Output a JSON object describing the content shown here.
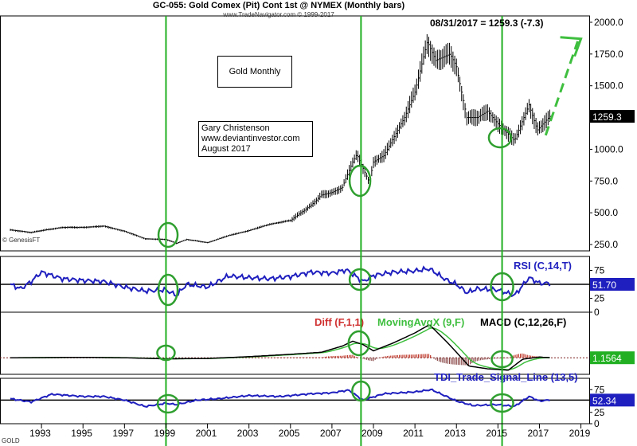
{
  "header": {
    "title": "GC-055:  Gold Comex (Pit) Cont 1st @ NYMEX  (Monthly bars)",
    "source": "www.TradeNavigator.com © 1999-2017",
    "last_quote": "08/31/2017 = 1259.3 (-7.3)"
  },
  "annotations": {
    "gold_monthly": "Gold Monthly",
    "author_lines": [
      "Gary Christenson",
      "www.deviantinvestor.com",
      "August 2017"
    ],
    "genesis": "© GenesisFT",
    "symbol": "GOLD"
  },
  "colors": {
    "price": "#000000",
    "indicator": "#1f1fbf",
    "diff_pos": "#c0392b",
    "moving_avg": "#3fbf3f",
    "vline": "#22b022",
    "circle": "#2f9f2f",
    "value_tag_bg": "#000000",
    "blue_tag_bg": "#1f1fbf",
    "green_tag_bg": "#22b022"
  },
  "chart_data": [
    {
      "type": "bar",
      "name_label": "Gold Monthly",
      "series": "GC-055 Gold Comex monthly bars",
      "y_ticks": [
        "250.0",
        "500.0",
        "750.0",
        "1000.0",
        "1250.0",
        "1500.0",
        "1750.0",
        "2000.0"
      ],
      "ylim": [
        200,
        2050
      ],
      "last_value_label": "1259.3",
      "anchors": [
        [
          1991.5,
          365
        ],
        [
          1992.5,
          345
        ],
        [
          1993.0,
          360
        ],
        [
          1994.0,
          385
        ],
        [
          1995.0,
          385
        ],
        [
          1996.0,
          395
        ],
        [
          1997.0,
          355
        ],
        [
          1998.0,
          295
        ],
        [
          1999.0,
          290
        ],
        [
          1999.5,
          260
        ],
        [
          2000.0,
          290
        ],
        [
          2001.0,
          265
        ],
        [
          2002.0,
          320
        ],
        [
          2003.0,
          360
        ],
        [
          2004.0,
          410
        ],
        [
          2005.0,
          440
        ],
        [
          2006.0,
          560
        ],
        [
          2006.5,
          640
        ],
        [
          2007.0,
          660
        ],
        [
          2007.5,
          700
        ],
        [
          2008.0,
          900
        ],
        [
          2008.2,
          960
        ],
        [
          2008.8,
          740
        ],
        [
          2009.0,
          900
        ],
        [
          2009.5,
          950
        ],
        [
          2010.0,
          1100
        ],
        [
          2010.5,
          1250
        ],
        [
          2011.0,
          1450
        ],
        [
          2011.6,
          1850
        ],
        [
          2012.0,
          1700
        ],
        [
          2012.7,
          1750
        ],
        [
          2013.0,
          1650
        ],
        [
          2013.5,
          1250
        ],
        [
          2014.0,
          1250
        ],
        [
          2014.5,
          1300
        ],
        [
          2015.0,
          1200
        ],
        [
          2015.8,
          1070
        ],
        [
          2016.5,
          1350
        ],
        [
          2016.9,
          1150
        ],
        [
          2017.5,
          1259.3
        ]
      ],
      "projection": {
        "from": [
          2017.3,
          1110
        ],
        "to": [
          2019.0,
          1870
        ]
      }
    },
    {
      "type": "line",
      "name_label": "RSI (C,14,T)",
      "y_ticks": [
        "0",
        "25",
        "50",
        "75"
      ],
      "ylim": [
        0,
        100
      ],
      "reference_line": 50,
      "last_value_label": "51.70",
      "anchors": [
        [
          1991.5,
          50
        ],
        [
          1992.0,
          42
        ],
        [
          1992.5,
          55
        ],
        [
          1993.0,
          72
        ],
        [
          1994.0,
          60
        ],
        [
          1995.0,
          57
        ],
        [
          1996.0,
          55
        ],
        [
          1997.0,
          45
        ],
        [
          1998.0,
          38
        ],
        [
          1999.0,
          40
        ],
        [
          1999.5,
          30
        ],
        [
          2000.0,
          50
        ],
        [
          2001.0,
          45
        ],
        [
          2002.0,
          65
        ],
        [
          2003.0,
          62
        ],
        [
          2004.0,
          60
        ],
        [
          2005.0,
          64
        ],
        [
          2006.0,
          72
        ],
        [
          2007.0,
          70
        ],
        [
          2007.7,
          76
        ],
        [
          2008.5,
          55
        ],
        [
          2009.0,
          66
        ],
        [
          2010.0,
          72
        ],
        [
          2011.0,
          74
        ],
        [
          2011.7,
          78
        ],
        [
          2012.5,
          58
        ],
        [
          2013.0,
          50
        ],
        [
          2013.5,
          35
        ],
        [
          2014.0,
          42
        ],
        [
          2015.0,
          40
        ],
        [
          2015.8,
          30
        ],
        [
          2016.5,
          62
        ],
        [
          2017.0,
          52
        ],
        [
          2017.5,
          51.7
        ]
      ]
    },
    {
      "type": "line",
      "name_label": "MACD (C,12,26,F)",
      "legend": [
        "Diff (F,1,1)",
        "MovingAvgX (9,F)",
        "MACD (C,12,26,F)"
      ],
      "last_value_label": "1.1564",
      "ylim": [
        -120,
        330
      ],
      "anchors": [
        [
          1991.5,
          0
        ],
        [
          1995.0,
          3
        ],
        [
          1997.0,
          0
        ],
        [
          1999.0,
          -8
        ],
        [
          2001.0,
          -5
        ],
        [
          2003.0,
          8
        ],
        [
          2005.0,
          25
        ],
        [
          2006.5,
          40
        ],
        [
          2007.5,
          85
        ],
        [
          2008.0,
          120
        ],
        [
          2008.5,
          95
        ],
        [
          2009.0,
          50
        ],
        [
          2010.0,
          110
        ],
        [
          2011.0,
          180
        ],
        [
          2011.7,
          240
        ],
        [
          2012.5,
          120
        ],
        [
          2013.0,
          40
        ],
        [
          2013.6,
          -60
        ],
        [
          2014.5,
          -80
        ],
        [
          2015.5,
          -90
        ],
        [
          2016.2,
          -10
        ],
        [
          2017.0,
          5
        ],
        [
          2017.5,
          1.16
        ]
      ]
    },
    {
      "type": "line",
      "name_label": "TDI_Trade_Signal_Line (13,5)",
      "y_ticks": [
        "0",
        "25",
        "50",
        "75"
      ],
      "ylim": [
        0,
        100
      ],
      "reference_line": 52,
      "last_value_label": "52.34",
      "anchors": [
        [
          1991.5,
          55
        ],
        [
          1992.5,
          48
        ],
        [
          1993.5,
          65
        ],
        [
          1995.0,
          60
        ],
        [
          1996.0,
          60
        ],
        [
          1997.0,
          52
        ],
        [
          1998.0,
          38
        ],
        [
          1999.0,
          45
        ],
        [
          1999.5,
          42
        ],
        [
          2000.5,
          52
        ],
        [
          2001.5,
          55
        ],
        [
          2003.0,
          62
        ],
        [
          2004.5,
          60
        ],
        [
          2006.0,
          66
        ],
        [
          2007.0,
          68
        ],
        [
          2007.8,
          74
        ],
        [
          2008.5,
          52
        ],
        [
          2009.5,
          66
        ],
        [
          2011.0,
          70
        ],
        [
          2011.8,
          75
        ],
        [
          2013.0,
          50
        ],
        [
          2013.8,
          40
        ],
        [
          2015.0,
          42
        ],
        [
          2015.8,
          38
        ],
        [
          2016.5,
          60
        ],
        [
          2017.0,
          50
        ],
        [
          2017.5,
          52.34
        ]
      ]
    }
  ],
  "x_axis": {
    "labels": [
      "1993",
      "1995",
      "1997",
      "1999",
      "2001",
      "2003",
      "2005",
      "2007",
      "2009",
      "2011",
      "2013",
      "2015",
      "2017",
      "2019"
    ],
    "xlim": [
      1991.0,
      2019.4
    ]
  },
  "markers": {
    "vertical_lines": [
      1999.0,
      2008.4,
      2015.2
    ]
  }
}
